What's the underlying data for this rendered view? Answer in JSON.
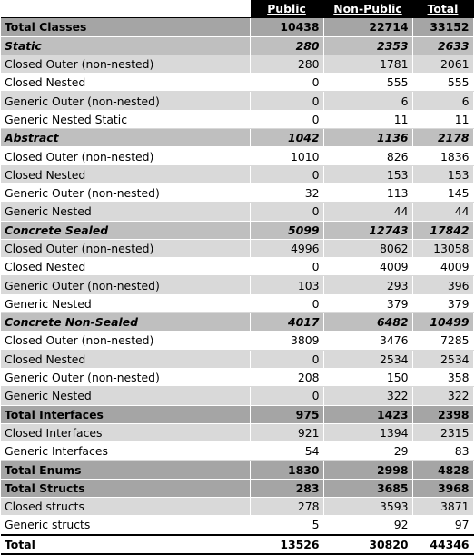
{
  "headers": {
    "public": "Public",
    "non_public": "Non-Public",
    "total": "Total"
  },
  "rows": [
    {
      "label": "Total Classes",
      "public": "10438",
      "non_public": "22714",
      "total": "33152"
    },
    {
      "label": "Static",
      "public": "280",
      "non_public": "2353",
      "total": "2633"
    },
    {
      "label": "Closed Outer (non-nested)",
      "public": "280",
      "non_public": "1781",
      "total": "2061"
    },
    {
      "label": "Closed Nested",
      "public": "0",
      "non_public": "555",
      "total": "555"
    },
    {
      "label": "Generic Outer (non-nested)",
      "public": "0",
      "non_public": "6",
      "total": "6"
    },
    {
      "label": "Generic Nested Static",
      "public": "0",
      "non_public": "11",
      "total": "11"
    },
    {
      "label": "Abstract",
      "public": "1042",
      "non_public": "1136",
      "total": "2178"
    },
    {
      "label": "Closed Outer (non-nested)",
      "public": "1010",
      "non_public": "826",
      "total": "1836"
    },
    {
      "label": "Closed Nested",
      "public": "0",
      "non_public": "153",
      "total": "153"
    },
    {
      "label": "Generic Outer (non-nested)",
      "public": "32",
      "non_public": "113",
      "total": "145"
    },
    {
      "label": "Generic Nested",
      "public": "0",
      "non_public": "44",
      "total": "44"
    },
    {
      "label": "Concrete Sealed",
      "public": "5099",
      "non_public": "12743",
      "total": "17842"
    },
    {
      "label": "Closed Outer (non-nested)",
      "public": "4996",
      "non_public": "8062",
      "total": "13058"
    },
    {
      "label": "Closed Nested",
      "public": "0",
      "non_public": "4009",
      "total": "4009"
    },
    {
      "label": "Generic Outer (non-nested)",
      "public": "103",
      "non_public": "293",
      "total": "396"
    },
    {
      "label": "Generic Nested",
      "public": "0",
      "non_public": "379",
      "total": "379"
    },
    {
      "label": "Concrete Non-Sealed",
      "public": "4017",
      "non_public": "6482",
      "total": "10499"
    },
    {
      "label": "Closed Outer (non-nested)",
      "public": "3809",
      "non_public": "3476",
      "total": "7285"
    },
    {
      "label": "Closed Nested",
      "public": "0",
      "non_public": "2534",
      "total": "2534"
    },
    {
      "label": "Generic Outer (non-nested)",
      "public": "208",
      "non_public": "150",
      "total": "358"
    },
    {
      "label": "Generic Nested",
      "public": "0",
      "non_public": "322",
      "total": "322"
    },
    {
      "label": "Total Interfaces",
      "public": "975",
      "non_public": "1423",
      "total": "2398"
    },
    {
      "label": "Closed Interfaces",
      "public": "921",
      "non_public": "1394",
      "total": "2315"
    },
    {
      "label": "Generic Interfaces",
      "public": "54",
      "non_public": "29",
      "total": "83"
    },
    {
      "label": "Total Enums",
      "public": "1830",
      "non_public": "2998",
      "total": "4828"
    },
    {
      "label": "Total Structs",
      "public": "283",
      "non_public": "3685",
      "total": "3968"
    },
    {
      "label": "Closed structs",
      "public": "278",
      "non_public": "3593",
      "total": "3871"
    },
    {
      "label": "Generic structs",
      "public": "5",
      "non_public": "92",
      "total": "97"
    },
    {
      "label": "Total",
      "public": "13526",
      "non_public": "30820",
      "total": "44346"
    }
  ]
}
